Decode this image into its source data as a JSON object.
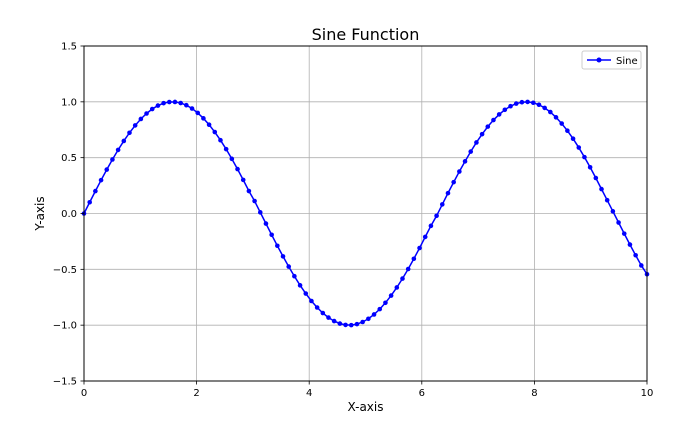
{
  "chart_data": {
    "type": "line",
    "title": "Sine Function",
    "xlabel": "X-axis",
    "ylabel": "Y-axis",
    "xlim": [
      0,
      10
    ],
    "ylim": [
      -1.5,
      1.5
    ],
    "x_ticks": [
      0,
      2,
      4,
      6,
      8,
      10
    ],
    "y_ticks": [
      -1.5,
      -1.0,
      -0.5,
      0.0,
      0.5,
      1.0,
      1.5
    ],
    "x_tick_labels": [
      "0",
      "2",
      "4",
      "6",
      "8",
      "10"
    ],
    "y_tick_labels": [
      "−1.5",
      "−1.0",
      "−0.5",
      "0.0",
      "0.5",
      "1.0",
      "1.5"
    ],
    "grid": true,
    "legend_position": "top-right",
    "series": [
      {
        "name": "Sine",
        "color": "#0000ff",
        "marker": "circle",
        "function": "sin(x)",
        "x": [
          0.0,
          0.101,
          0.202,
          0.303,
          0.404,
          0.505,
          0.606,
          0.707,
          0.808,
          0.909,
          1.01,
          1.111,
          1.212,
          1.313,
          1.414,
          1.515,
          1.616,
          1.717,
          1.818,
          1.919,
          2.02,
          2.121,
          2.222,
          2.323,
          2.424,
          2.525,
          2.626,
          2.727,
          2.828,
          2.929,
          3.03,
          3.131,
          3.232,
          3.333,
          3.434,
          3.535,
          3.636,
          3.737,
          3.838,
          3.939,
          4.04,
          4.141,
          4.242,
          4.343,
          4.444,
          4.545,
          4.646,
          4.747,
          4.848,
          4.949,
          5.051,
          5.152,
          5.253,
          5.354,
          5.455,
          5.556,
          5.657,
          5.758,
          5.859,
          5.96,
          6.061,
          6.162,
          6.263,
          6.364,
          6.465,
          6.566,
          6.667,
          6.768,
          6.869,
          6.97,
          7.071,
          7.172,
          7.273,
          7.374,
          7.475,
          7.576,
          7.677,
          7.778,
          7.879,
          7.98,
          8.081,
          8.182,
          8.283,
          8.384,
          8.485,
          8.586,
          8.687,
          8.788,
          8.889,
          8.99,
          9.091,
          9.192,
          9.293,
          9.394,
          9.495,
          9.596,
          9.697,
          9.798,
          9.899,
          10.0
        ],
        "y": [
          0.0,
          0.1008,
          0.2006,
          0.2984,
          0.3931,
          0.4838,
          0.5696,
          0.6496,
          0.7229,
          0.7887,
          0.8465,
          0.8956,
          0.9356,
          0.9665,
          0.9879,
          0.9983,
          0.999,
          0.9893,
          0.9696,
          0.94,
          0.9008,
          0.8523,
          0.7951,
          0.7296,
          0.6563,
          0.576,
          0.4894,
          0.3975,
          0.3012,
          0.2013,
          0.1114,
          0.0102,
          -0.0905,
          -0.1906,
          -0.2888,
          -0.384,
          -0.4753,
          -0.5618,
          -0.6432,
          -0.7169,
          -0.7835,
          -0.8417,
          -0.8915,
          -0.9322,
          -0.9636,
          -0.986,
          -0.9977,
          -0.9996,
          -0.9906,
          -0.9716,
          -0.9428,
          -0.9042,
          -0.8564,
          -0.7998,
          -0.7352,
          -0.6625,
          -0.583,
          -0.4969,
          -0.4052,
          -0.3093,
          -0.2095,
          -0.1103,
          -0.0204,
          0.0814,
          0.1822,
          0.2805,
          0.3758,
          0.4672,
          0.5542,
          0.6362,
          0.7106,
          0.778,
          0.8369,
          0.8874,
          0.9289,
          0.961,
          0.9842,
          0.9968,
          0.9995,
          0.9919,
          0.9738,
          0.9458,
          0.9085,
          0.8613,
          0.8055,
          0.7415,
          0.6696,
          0.5905,
          0.5049,
          0.4138,
          0.3179,
          0.2185,
          0.1192,
          0.0193,
          -0.0808,
          -0.1802,
          -0.2785,
          -0.3738,
          -0.4654,
          -0.544
        ]
      }
    ]
  }
}
